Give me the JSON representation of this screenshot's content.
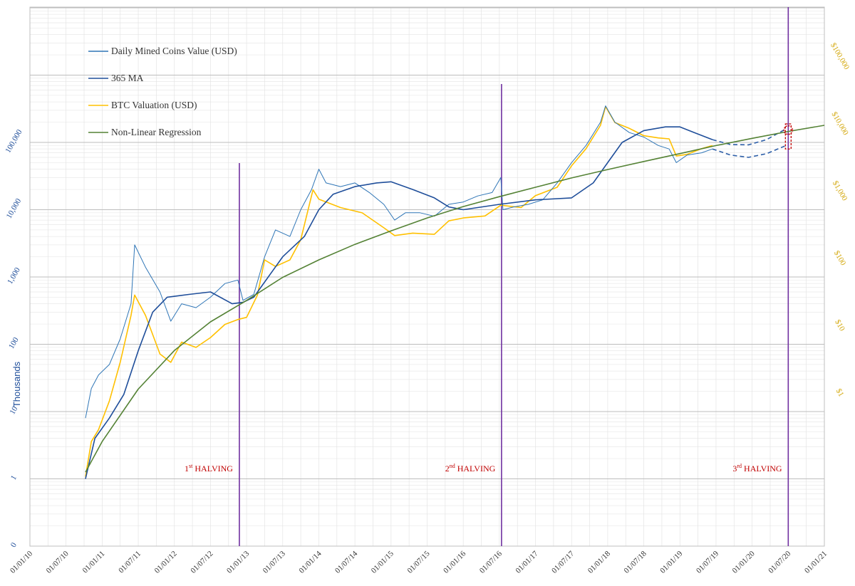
{
  "chart_data": {
    "type": "line",
    "title": "",
    "y_axis_left": {
      "label": "Thousands",
      "scale": "log",
      "ticks": [
        "0",
        "1",
        "10",
        "100",
        "1,000",
        "10,000",
        "100,000"
      ],
      "color": "#1f4e9a"
    },
    "y_axis_right": {
      "scale": "log",
      "ticks": [
        "$1",
        "$10",
        "$100",
        "$1,000",
        "$10,000",
        "$100,000"
      ],
      "color": "#d4a90f"
    },
    "x_axis": {
      "ticks": [
        "01/01/10",
        "01/07/10",
        "01/01/11",
        "01/07/11",
        "01/01/12",
        "01/07/12",
        "01/01/13",
        "01/07/13",
        "01/01/14",
        "01/07/14",
        "01/01/15",
        "01/07/15",
        "01/01/16",
        "01/07/16",
        "01/01/17",
        "01/07/17",
        "01/01/18",
        "01/07/18",
        "01/01/19",
        "01/07/19",
        "01/01/20",
        "01/07/20",
        "01/01/21"
      ]
    },
    "grid": true,
    "legend_position": "top-left",
    "legend": [
      {
        "name": "Daily Mined Coins Value (USD)",
        "color": "#2e75b6"
      },
      {
        "name": "365 MA",
        "color": "#1f4e9a"
      },
      {
        "name": "BTC Valuation (USD)",
        "color": "#ffc000"
      },
      {
        "name": "Non-Linear Regression",
        "color": "#548235"
      }
    ],
    "halvings": [
      {
        "x": 2012.9,
        "label_main": "1",
        "label_sup": "st",
        "label_rest": " HALVING"
      },
      {
        "x": 2016.53,
        "label_main": "2",
        "label_sup": "nd",
        "label_rest": " HALVING"
      },
      {
        "x": 2020.5,
        "label_main": "3",
        "label_sup": "rd",
        "label_rest": " HALVING"
      }
    ],
    "series": [
      {
        "name": "Daily Mined Coins Value (USD)",
        "axis": "left",
        "color": "#2e75b6",
        "x": [
          2010.77,
          2010.85,
          2010.95,
          2011.1,
          2011.25,
          2011.4,
          2011.45,
          2011.6,
          2011.8,
          2011.95,
          2012.1,
          2012.3,
          2012.5,
          2012.7,
          2012.88,
          2012.95,
          2013.1,
          2013.25,
          2013.4,
          2013.6,
          2013.75,
          2013.9,
          2014.0,
          2014.1,
          2014.3,
          2014.5,
          2014.7,
          2014.9,
          2015.05,
          2015.2,
          2015.4,
          2015.6,
          2015.8,
          2016.0,
          2016.2,
          2016.4,
          2016.52,
          2016.55,
          2016.7,
          2016.9,
          2017.1,
          2017.3,
          2017.5,
          2017.7,
          2017.9,
          2017.97,
          2018.1,
          2018.3,
          2018.5,
          2018.7,
          2018.85,
          2018.95,
          2019.1,
          2019.3,
          2019.45
        ],
        "y": [
          0.8,
          2.2,
          3.5,
          5,
          12,
          40,
          300,
          140,
          60,
          22,
          40,
          35,
          50,
          80,
          90,
          45,
          55,
          200,
          500,
          400,
          1000,
          2000,
          4000,
          2500,
          2200,
          2500,
          1800,
          1200,
          700,
          900,
          900,
          800,
          1200,
          1300,
          1600,
          1800,
          3000,
          1000,
          1100,
          1200,
          1400,
          2500,
          5000,
          9000,
          20000,
          35000,
          20000,
          14000,
          12000,
          9000,
          8000,
          5000,
          6500,
          7000,
          8000
        ]
      },
      {
        "name": "365 MA",
        "axis": "left",
        "color": "#1f4e9a",
        "x": [
          2010.77,
          2010.9,
          2011.1,
          2011.3,
          2011.5,
          2011.7,
          2011.9,
          2012.2,
          2012.5,
          2012.8,
          2012.95,
          2013.1,
          2013.3,
          2013.5,
          2013.8,
          2014.0,
          2014.2,
          2014.5,
          2014.8,
          2015.0,
          2015.3,
          2015.6,
          2015.8,
          2016.0,
          2016.5,
          2017.0,
          2017.5,
          2017.8,
          2018.0,
          2018.2,
          2018.5,
          2018.8,
          2019.0,
          2019.2,
          2019.45
        ],
        "y": [
          0.1,
          0.4,
          0.8,
          1.8,
          8,
          30,
          50,
          55,
          60,
          40,
          42,
          50,
          100,
          200,
          400,
          1000,
          1700,
          2200,
          2500,
          2600,
          2000,
          1500,
          1100,
          1000,
          1200,
          1400,
          1500,
          2500,
          5000,
          10000,
          15000,
          17000,
          17000,
          14000,
          11000
        ]
      },
      {
        "name": "365 MA (projection)",
        "axis": "left",
        "color": "#2e5fa8",
        "dashed": true,
        "x": [
          2019.45,
          2019.7,
          2019.95,
          2020.2,
          2020.45
        ],
        "y": [
          11000,
          9300,
          9200,
          11000,
          15500
        ]
      },
      {
        "name": "Daily Mined Coins Value (projection)",
        "axis": "left",
        "color": "#2e5fa8",
        "dashed": true,
        "x": [
          2019.45,
          2019.7,
          2019.95,
          2020.2,
          2020.45
        ],
        "y": [
          8000,
          6500,
          6000,
          6800,
          8800
        ]
      },
      {
        "name": "BTC Valuation (USD)",
        "axis": "right",
        "color": "#ffc000",
        "x": [
          2010.77,
          2010.85,
          2010.95,
          2011.1,
          2011.25,
          2011.4,
          2011.45,
          2011.6,
          2011.8,
          2011.95,
          2012.1,
          2012.3,
          2012.5,
          2012.7,
          2012.88,
          2013.0,
          2013.15,
          2013.25,
          2013.4,
          2013.6,
          2013.75,
          2013.92,
          2014.0,
          2014.3,
          2014.6,
          2014.9,
          2015.05,
          2015.3,
          2015.6,
          2015.8,
          2016.0,
          2016.3,
          2016.52,
          2016.8,
          2017.0,
          2017.3,
          2017.5,
          2017.7,
          2017.9,
          2017.97,
          2018.1,
          2018.3,
          2018.5,
          2018.7,
          2018.85,
          2018.95,
          2019.1,
          2019.3,
          2019.45
        ],
        "y": [
          0.06,
          0.2,
          0.3,
          0.8,
          3,
          15,
          30,
          15,
          4,
          3,
          6,
          5,
          7,
          11,
          13,
          14,
          30,
          100,
          80,
          100,
          200,
          1100,
          800,
          600,
          500,
          300,
          230,
          250,
          240,
          380,
          420,
          450,
          650,
          600,
          900,
          1200,
          2500,
          4500,
          10000,
          19000,
          11000,
          9000,
          7000,
          6500,
          6300,
          3500,
          3700,
          4500,
          5000
        ]
      },
      {
        "name": "Non-Linear Regression",
        "axis": "right",
        "color": "#548235",
        "x": [
          2010.77,
          2011.0,
          2011.5,
          2012.0,
          2012.5,
          2013.0,
          2013.5,
          2014.0,
          2014.5,
          2015.0,
          2015.5,
          2016.0,
          2016.5,
          2017.0,
          2017.5,
          2018.0,
          2018.5,
          2019.0,
          2019.5,
          2020.0,
          2020.5,
          2021.0
        ],
        "y": [
          0.07,
          0.2,
          1.2,
          4.5,
          12,
          25,
          55,
          100,
          170,
          270,
          420,
          620,
          870,
          1200,
          1650,
          2200,
          2900,
          3800,
          5000,
          6400,
          8100,
          10000
        ]
      }
    ],
    "annotations": [
      {
        "type": "circle",
        "axis": "right",
        "x": 2020.5,
        "y": 8500,
        "color": "#c00000"
      },
      {
        "type": "box",
        "axis": "left",
        "x": 2020.5,
        "y_min": 8800,
        "y_max": 15500,
        "color": "#c00000"
      }
    ]
  }
}
